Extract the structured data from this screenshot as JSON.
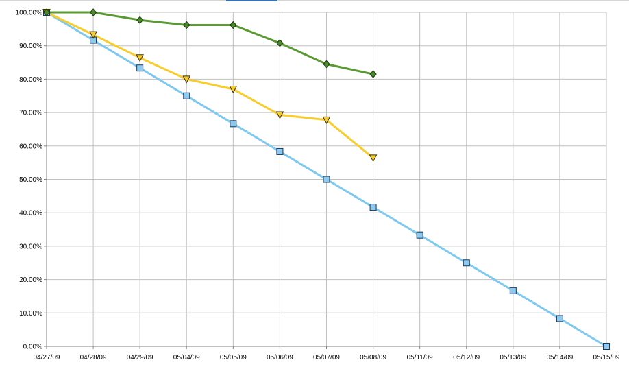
{
  "chart_data": {
    "type": "line",
    "title": "",
    "xlabel": "",
    "ylabel": "",
    "categories": [
      "04/27/09",
      "04/28/09",
      "04/29/09",
      "05/04/09",
      "05/05/09",
      "05/06/09",
      "05/07/09",
      "05/08/09",
      "05/11/09",
      "05/12/09",
      "05/13/09",
      "05/14/09",
      "05/15/09"
    ],
    "ylim": [
      0,
      100
    ],
    "y_ticks": [
      "0.00%",
      "10.00%",
      "20.00%",
      "30.00%",
      "40.00%",
      "50.00%",
      "60.00%",
      "70.00%",
      "80.00%",
      "90.00%",
      "100.00%"
    ],
    "grid": true,
    "legend": "none",
    "series": [
      {
        "marker": "square",
        "color": "#7fc8f0",
        "marker_fill": "#8ec9f0",
        "values": [
          100.0,
          91.67,
          83.33,
          75.0,
          66.67,
          58.33,
          50.0,
          41.67,
          33.33,
          25.0,
          16.67,
          8.33,
          0.0
        ]
      },
      {
        "marker": "triangle-down",
        "color": "#f8cc2a",
        "marker_fill": "#f8cc2a",
        "values": [
          100.0,
          93.3,
          86.4,
          80.0,
          77.0,
          69.3,
          67.8,
          56.4,
          null,
          null,
          null,
          null,
          null
        ]
      },
      {
        "marker": "diamond",
        "color": "#5a9a32",
        "marker_fill": "#4a8a2a",
        "values": [
          100.0,
          100.0,
          97.7,
          96.2,
          96.2,
          90.8,
          84.5,
          81.5,
          null,
          null,
          null,
          null,
          null
        ]
      }
    ]
  }
}
